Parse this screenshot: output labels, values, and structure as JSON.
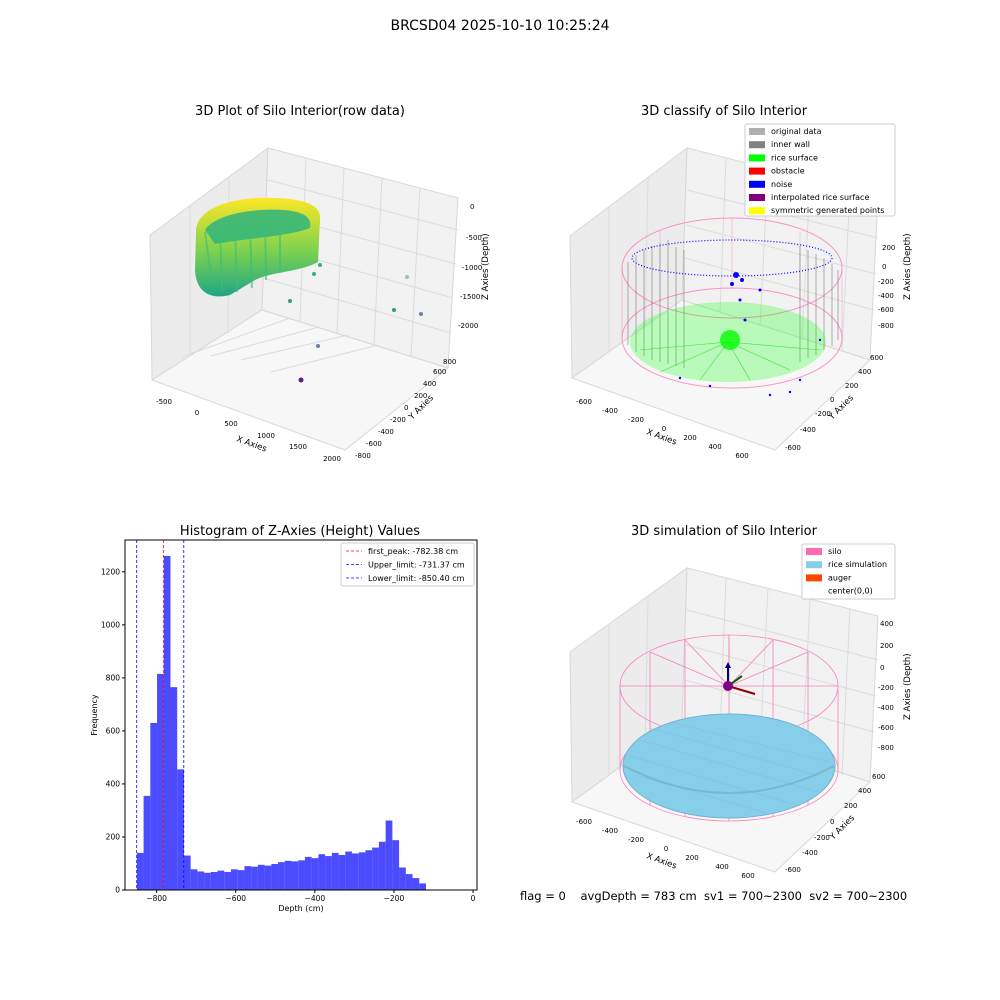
{
  "suptitle": "BRCSD04 2025-10-10 10:25:24",
  "footer": "flag = 0    avgDepth = 783 cm  sv1 = 700~2300  sv2 = 700~2300",
  "panels": {
    "raw": {
      "title": "3D Plot of Silo Interior(row data)",
      "xlabel": "X Axies",
      "ylabel": "Y Axies",
      "zlabel": "Z Axies (Depth)",
      "xticks": [
        "-500",
        "0",
        "500",
        "1000",
        "1500",
        "2000"
      ],
      "yticks": [
        "-800",
        "-600",
        "-400",
        "-200",
        "0",
        "200",
        "400",
        "600",
        "800"
      ],
      "zticks": [
        "0",
        "-500",
        "-1000",
        "-1500",
        "-2000"
      ]
    },
    "classify": {
      "title": "3D classify of Silo Interior",
      "xlabel": "X Axies",
      "ylabel": "Y Axies",
      "zlabel": "Z Axies (Depth)",
      "xticks": [
        "-600",
        "-400",
        "-200",
        "0",
        "200",
        "400",
        "600"
      ],
      "yticks": [
        "-600",
        "-400",
        "-200",
        "0",
        "200",
        "400",
        "600"
      ],
      "zticks": [
        "200",
        "0",
        "-200",
        "-400",
        "-600",
        "-800"
      ],
      "legend": [
        {
          "label": "original data",
          "color": "#b0b0b0"
        },
        {
          "label": "inner wall",
          "color": "#808080"
        },
        {
          "label": "rice surface",
          "color": "#00ff00"
        },
        {
          "label": "obstacle",
          "color": "#ff0000"
        },
        {
          "label": "noise",
          "color": "#0000ff"
        },
        {
          "label": "interpolated rice surface",
          "color": "#800080"
        },
        {
          "label": "symmetric generated points",
          "color": "#ffff00"
        }
      ]
    },
    "simulation": {
      "title": "3D simulation of Silo Interior",
      "xlabel": "X Axies",
      "ylabel": "Y Axies",
      "zlabel": "Z Axies (Depth)",
      "xticks": [
        "-600",
        "-400",
        "-200",
        "0",
        "200",
        "400",
        "600"
      ],
      "yticks": [
        "-600",
        "-400",
        "-200",
        "0",
        "200",
        "400",
        "600"
      ],
      "zticks": [
        "400",
        "200",
        "0",
        "-200",
        "-400",
        "-600",
        "-800"
      ],
      "legend": [
        {
          "label": "silo",
          "color": "#ff69b4"
        },
        {
          "label": "rice simulation",
          "color": "#87ceeb"
        },
        {
          "label": "auger",
          "color": "#ff4500"
        },
        {
          "label": "center(0,0)",
          "color": "#ffffff"
        }
      ]
    }
  },
  "chart_data": [
    {
      "type": "bar",
      "title": "Histogram of Z-Axies (Height) Values",
      "xlabel": "Depth (cm)",
      "ylabel": "Frequency",
      "xlim": [
        -880,
        10
      ],
      "ylim": [
        0,
        1320
      ],
      "xticks": [
        -800,
        -600,
        -400,
        -200,
        0
      ],
      "yticks": [
        0,
        200,
        400,
        600,
        800,
        1000,
        1200
      ],
      "bin_start": -850,
      "bin_width": 17,
      "values": [
        140,
        355,
        630,
        815,
        1260,
        765,
        455,
        130,
        78,
        70,
        65,
        68,
        73,
        68,
        78,
        75,
        90,
        88,
        95,
        92,
        98,
        105,
        110,
        108,
        112,
        125,
        120,
        135,
        128,
        140,
        132,
        145,
        138,
        142,
        150,
        160,
        182,
        262,
        188,
        85,
        60,
        45,
        25
      ],
      "bar_color": "#0000ff",
      "bar_alpha": 0.7,
      "vlines": [
        {
          "label": "first_peak: -782.38 cm",
          "value": -782.38,
          "color": "#ff0000"
        },
        {
          "label": "Upper_limit: -731.37 cm",
          "value": -731.37,
          "color": "#0000ff"
        },
        {
          "label": "Lower_limit: -850.40 cm",
          "value": -850.4,
          "color": "#0000ff"
        }
      ],
      "legend_position": "top-right"
    }
  ]
}
